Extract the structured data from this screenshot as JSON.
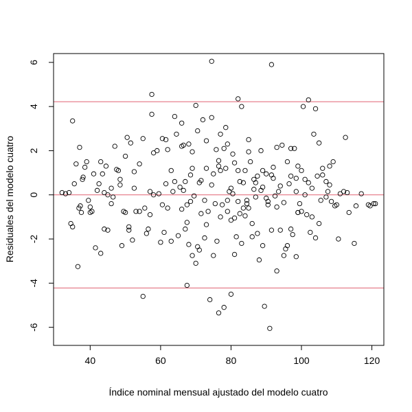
{
  "chart_data": {
    "type": "scatter",
    "title": "",
    "xlabel": "Índice nominal mensual ajustado del modelo cuatro",
    "ylabel": "Residuales del modelo cuatro",
    "xlim": [
      29.6,
      123.4
    ],
    "ylim": [
      -6.82,
      6.4
    ],
    "xticks": [
      40,
      60,
      80,
      100,
      120
    ],
    "yticks": [
      -6,
      -4,
      -2,
      0,
      2,
      4,
      6
    ],
    "xtick_labels": [
      "40",
      "60",
      "80",
      "100",
      "120"
    ],
    "ytick_labels": [
      "-6",
      "-4",
      "-2",
      "0",
      "2",
      "4",
      "6"
    ],
    "reference_lines": [
      {
        "y": 4.22,
        "color": "#e06070"
      },
      {
        "y": 0,
        "color": "#e06070"
      },
      {
        "y": -4.22,
        "color": "#e06070"
      }
    ],
    "point_color": "#000000",
    "points": [
      [
        32,
        0.1
      ],
      [
        33,
        0.05
      ],
      [
        34,
        0.1
      ],
      [
        34.5,
        -1.3
      ],
      [
        35,
        -1.45
      ],
      [
        35,
        3.35
      ],
      [
        35.5,
        0.5
      ],
      [
        36,
        1.4
      ],
      [
        36.5,
        -3.25
      ],
      [
        37,
        2.15
      ],
      [
        36.8,
        -0.6
      ],
      [
        37.2,
        -0.5
      ],
      [
        37.5,
        -0.8
      ],
      [
        37.8,
        0.7
      ],
      [
        38,
        0.8
      ],
      [
        38.5,
        1.25
      ],
      [
        39.5,
        -0.25
      ],
      [
        40,
        -0.55
      ],
      [
        40,
        -0.8
      ],
      [
        40.5,
        -0.75
      ],
      [
        41,
        0.95
      ],
      [
        41.5,
        -2.4
      ],
      [
        42,
        0.2
      ],
      [
        42.5,
        0.5
      ],
      [
        43,
        1.5
      ],
      [
        43,
        -2.65
      ],
      [
        43.5,
        0.95
      ],
      [
        44,
        -1.55
      ],
      [
        44.5,
        1.3
      ],
      [
        45,
        -1.6
      ],
      [
        45,
        0
      ],
      [
        46,
        0.3
      ],
      [
        46.5,
        -0.1
      ],
      [
        47,
        2.2
      ],
      [
        47.5,
        1.15
      ],
      [
        48,
        1.1
      ],
      [
        48.5,
        0.45
      ],
      [
        49,
        -2.3
      ],
      [
        49.5,
        -0.75
      ],
      [
        50,
        -0.8
      ],
      [
        50.5,
        2.6
      ],
      [
        51,
        -1.45
      ],
      [
        51,
        -1.6
      ],
      [
        51.5,
        2.35
      ],
      [
        52,
        -2.05
      ],
      [
        52.5,
        0.3
      ],
      [
        53,
        -0.75
      ],
      [
        54,
        -0.75
      ],
      [
        55,
        2.55
      ],
      [
        55,
        -4.6
      ],
      [
        55.5,
        -0.6
      ],
      [
        56,
        -1.75
      ],
      [
        56.5,
        -1.55
      ],
      [
        57,
        0.15
      ],
      [
        57.5,
        4.55
      ],
      [
        57.5,
        3.65
      ],
      [
        58,
        0
      ],
      [
        59,
        2
      ],
      [
        59.5,
        0.05
      ],
      [
        60,
        -2.15
      ],
      [
        60.5,
        2.55
      ],
      [
        61,
        -1.7
      ],
      [
        61.5,
        2.5
      ],
      [
        62,
        2.05
      ],
      [
        63,
        -2.1
      ],
      [
        63.5,
        0.15
      ],
      [
        64,
        3.55
      ],
      [
        64.5,
        2.75
      ],
      [
        65,
        -1.85
      ],
      [
        65.5,
        0.35
      ],
      [
        66,
        2.2
      ],
      [
        66,
        3.25
      ],
      [
        66.5,
        0.2
      ],
      [
        67,
        -1.55
      ],
      [
        67.5,
        -1.25
      ],
      [
        67,
        0.6
      ],
      [
        67.5,
        -0.45
      ],
      [
        68,
        -2.25
      ],
      [
        67.5,
        -4.1
      ],
      [
        68,
        2.3
      ],
      [
        68.5,
        -0.3
      ],
      [
        69,
        -2.75
      ],
      [
        69,
        1.2
      ],
      [
        69.5,
        -0.05
      ],
      [
        70,
        4.05
      ],
      [
        70,
        -3.1
      ],
      [
        70.5,
        -2.35
      ],
      [
        71,
        0.55
      ],
      [
        71,
        -2.5
      ],
      [
        71.5,
        0.65
      ],
      [
        72,
        3.4
      ],
      [
        72.5,
        -0.25
      ],
      [
        73,
        2.45
      ],
      [
        73,
        1.2
      ],
      [
        73.5,
        -0.75
      ],
      [
        74,
        -4.75
      ],
      [
        74.5,
        6.05
      ],
      [
        74.5,
        3.5
      ],
      [
        75,
        0.95
      ],
      [
        75,
        -2.75
      ],
      [
        75.5,
        -0.4
      ],
      [
        76,
        -2.1
      ],
      [
        76.5,
        1.3
      ],
      [
        76.5,
        -5.35
      ],
      [
        77,
        2.75
      ],
      [
        77,
        -1
      ],
      [
        77.5,
        -0.45
      ],
      [
        78,
        2.1
      ],
      [
        78,
        -5.1
      ],
      [
        78.5,
        1.2
      ],
      [
        79,
        2.3
      ],
      [
        79,
        -0.25
      ],
      [
        79.5,
        0.15
      ],
      [
        80,
        -1.15
      ],
      [
        80,
        -4.5
      ],
      [
        80.5,
        0.05
      ],
      [
        81,
        1.45
      ],
      [
        81,
        -2.7
      ],
      [
        81.5,
        -1.9
      ],
      [
        82,
        4.35
      ],
      [
        82,
        -0.3
      ],
      [
        82.5,
        0.6
      ],
      [
        83,
        -2.2
      ],
      [
        83,
        4
      ],
      [
        83.5,
        0.55
      ],
      [
        84,
        -0.95
      ],
      [
        84,
        1.1
      ],
      [
        84.5,
        -0.25
      ],
      [
        85,
        -0.6
      ],
      [
        85,
        2.5
      ],
      [
        85.5,
        1.5
      ],
      [
        86,
        -1.3
      ],
      [
        86,
        -1.9
      ],
      [
        86.5,
        0.7
      ],
      [
        87,
        0.55
      ],
      [
        87.5,
        -1.75
      ],
      [
        88,
        -2.95
      ],
      [
        88.5,
        2
      ],
      [
        89,
        1.1
      ],
      [
        89,
        -2.3
      ],
      [
        89.5,
        -5.05
      ],
      [
        90,
        0.95
      ],
      [
        90.5,
        -0.45
      ],
      [
        90.5,
        -0.3
      ],
      [
        91,
        -6.05
      ],
      [
        91.5,
        5.9
      ],
      [
        91.5,
        -1.6
      ],
      [
        92,
        1.25
      ],
      [
        92.5,
        -0.05
      ],
      [
        93,
        -3.45
      ],
      [
        93,
        2.15
      ],
      [
        93.5,
        0.15
      ],
      [
        94,
        0.4
      ],
      [
        94.5,
        2.25
      ],
      [
        95,
        -2.75
      ],
      [
        95.5,
        -2.45
      ],
      [
        96,
        -2.3
      ],
      [
        97,
        -1.55
      ],
      [
        97,
        0.85
      ],
      [
        97.5,
        -1.8
      ],
      [
        98,
        2.1
      ],
      [
        98.5,
        0.75
      ],
      [
        98.5,
        -2.8
      ],
      [
        99,
        1.3
      ],
      [
        99,
        -0.8
      ],
      [
        100,
        -0.75
      ],
      [
        100.5,
        4
      ],
      [
        101,
        0
      ],
      [
        101.5,
        -0.9
      ],
      [
        102,
        4.3
      ],
      [
        102.5,
        -1.7
      ],
      [
        103.5,
        2.75
      ],
      [
        104,
        -1.95
      ],
      [
        104,
        3.9
      ],
      [
        105,
        2.35
      ],
      [
        105.5,
        -0.25
      ],
      [
        106,
        1.2
      ],
      [
        107,
        -0.1
      ],
      [
        107.5,
        0.15
      ],
      [
        108,
        0.45
      ],
      [
        108,
        1.3
      ],
      [
        109,
        1.5
      ],
      [
        110,
        -0.45
      ],
      [
        110.5,
        -2
      ],
      [
        112,
        0.15
      ],
      [
        112.5,
        2.6
      ],
      [
        113,
        0.1
      ],
      [
        113.5,
        -0.8
      ],
      [
        115,
        -2.2
      ],
      [
        115.5,
        -0.5
      ],
      [
        117,
        0.05
      ],
      [
        119,
        -0.45
      ],
      [
        119.5,
        -0.5
      ],
      [
        120.5,
        -0.4
      ],
      [
        121,
        -0.4
      ],
      [
        66.5,
        2.25
      ],
      [
        63,
        1.1
      ],
      [
        61.5,
        0.5
      ],
      [
        54,
        1.4
      ],
      [
        48.5,
        0.7
      ],
      [
        44,
        0.1
      ],
      [
        39,
        1.5
      ],
      [
        58,
        1.9
      ],
      [
        69,
        1.95
      ],
      [
        70.5,
        2.9
      ],
      [
        75.8,
        2.05
      ],
      [
        78.5,
        3.05
      ],
      [
        80.5,
        1.85
      ],
      [
        82,
        1.1
      ],
      [
        87.5,
        0.85
      ],
      [
        89,
        0.35
      ],
      [
        91.5,
        0.9
      ],
      [
        94,
        -1.6
      ],
      [
        96.5,
        0.5
      ],
      [
        98.5,
        0.15
      ],
      [
        100,
        1.1
      ],
      [
        103,
        0.3
      ],
      [
        106,
        0.9
      ],
      [
        109.5,
        -0.5
      ],
      [
        111,
        0.05
      ],
      [
        60.5,
        -0.45
      ],
      [
        62,
        -0.6
      ],
      [
        64,
        0.6
      ],
      [
        71.5,
        -0.85
      ],
      [
        72.5,
        -1.95
      ],
      [
        76.5,
        1.55
      ],
      [
        79,
        -0.75
      ],
      [
        81,
        -1.05
      ],
      [
        83.5,
        -0.6
      ],
      [
        85,
        1.95
      ],
      [
        87,
        -0.1
      ],
      [
        88.5,
        0.2
      ],
      [
        92,
        0.75
      ],
      [
        95,
        -0.35
      ],
      [
        97,
        2.1
      ],
      [
        99,
        -0.8
      ],
      [
        101,
        0.7
      ],
      [
        103,
        -1
      ],
      [
        104.5,
        0.85
      ],
      [
        107,
        0.6
      ],
      [
        46,
        -0.4
      ],
      [
        50,
        1.75
      ],
      [
        52.5,
        1.05
      ],
      [
        57,
        -0.9
      ],
      [
        66,
        -0.65
      ],
      [
        68.5,
        0.9
      ],
      [
        73,
        -1.35
      ],
      [
        74.5,
        0.45
      ],
      [
        77,
        1.1
      ],
      [
        80,
        0.3
      ],
      [
        82.5,
        -0.85
      ],
      [
        84.5,
        -0.4
      ],
      [
        86.5,
        0.25
      ],
      [
        90,
        -0.15
      ],
      [
        93,
        -0.55
      ],
      [
        96,
        1.5
      ],
      [
        99.5,
        -0.4
      ],
      [
        102,
        0.55
      ],
      [
        105,
        -1.3
      ],
      [
        108.5,
        -0.3
      ]
    ]
  }
}
